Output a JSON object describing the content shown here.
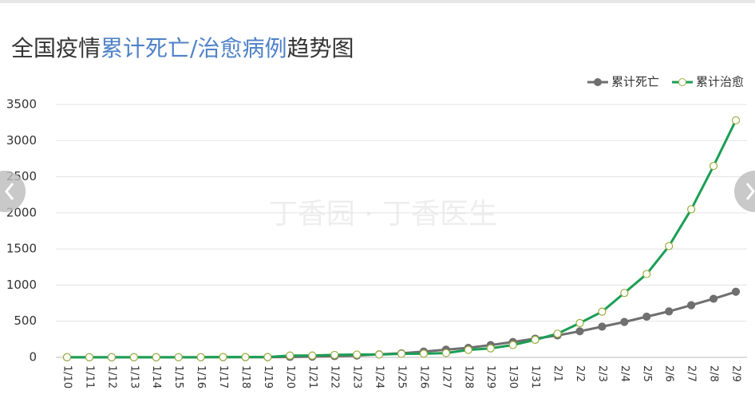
{
  "chart_data": {
    "type": "line",
    "title": [
      "全国疫情",
      "累计死亡/治愈病例",
      "趋势图"
    ],
    "watermark": "丁香园 · 丁香医生",
    "categories": [
      "1/10",
      "1/11",
      "1/12",
      "1/13",
      "1/14",
      "1/15",
      "1/16",
      "1/17",
      "1/18",
      "1/19",
      "1/20",
      "1/21",
      "1/22",
      "1/23",
      "1/24",
      "1/25",
      "1/26",
      "1/27",
      "1/28",
      "1/29",
      "1/30",
      "1/31",
      "2/1",
      "2/2",
      "2/3",
      "2/4",
      "2/5",
      "2/6",
      "2/7",
      "2/8",
      "2/9"
    ],
    "series": [
      {
        "name": "累计死亡",
        "color": "#6f6f6f",
        "marker_fill": "#6f6f6f",
        "values": [
          1,
          1,
          1,
          1,
          1,
          2,
          2,
          3,
          3,
          3,
          6,
          9,
          17,
          25,
          41,
          56,
          80,
          106,
          132,
          170,
          213,
          259,
          304,
          361,
          425,
          490,
          563,
          636,
          722,
          811,
          908
        ]
      },
      {
        "name": "累计治愈",
        "color": "#1a9e55",
        "marker_fill": "#ffffff",
        "values": [
          2,
          2,
          2,
          2,
          2,
          2,
          2,
          4,
          4,
          4,
          25,
          25,
          34,
          38,
          39,
          49,
          51,
          60,
          103,
          124,
          171,
          243,
          328,
          475,
          632,
          892,
          1153,
          1540,
          2050,
          2649,
          3281
        ]
      }
    ],
    "ylim": [
      0,
      3500
    ],
    "yticks": [
      0,
      500,
      1000,
      1500,
      2000,
      2500,
      3000,
      3500
    ],
    "grid": true,
    "legend": "top-right"
  }
}
